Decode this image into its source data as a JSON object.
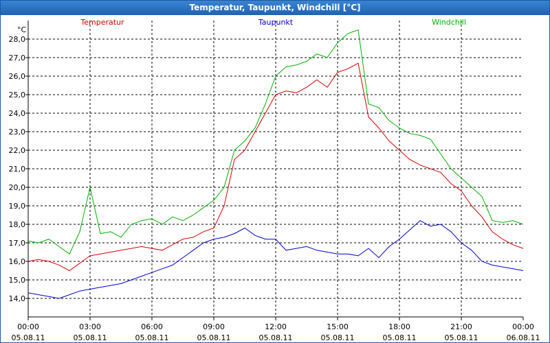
{
  "window": {
    "title": "Temperatur, Taupunkt, Windchill [°C]"
  },
  "chart_data": {
    "type": "line",
    "title": "Temperatur, Taupunkt, Windchill [°C]",
    "ylabel": "°C",
    "xlabel": "",
    "ylim": [
      13.0,
      29.0
    ],
    "xlim": [
      0,
      24
    ],
    "grid": true,
    "y_ticks": [
      "14,0",
      "15,0",
      "16,0",
      "17,0",
      "18,0",
      "19,0",
      "20,0",
      "21,0",
      "22,0",
      "23,0",
      "24,0",
      "25,0",
      "26,0",
      "27,0",
      "28,0"
    ],
    "x_ticks": [
      {
        "time": "00:00",
        "date": "05.08.11"
      },
      {
        "time": "03:00",
        "date": "05.08.11"
      },
      {
        "time": "06:00",
        "date": "05.08.11"
      },
      {
        "time": "09:00",
        "date": "05.08.11"
      },
      {
        "time": "12:00",
        "date": "05.08.11"
      },
      {
        "time": "15:00",
        "date": "05.08.11"
      },
      {
        "time": "18:00",
        "date": "05.08.11"
      },
      {
        "time": "21:00",
        "date": "05.08.11"
      },
      {
        "time": "00:00",
        "date": "06.08.11"
      }
    ],
    "x": [
      0,
      0.5,
      1,
      1.5,
      2,
      2.5,
      3,
      3.5,
      4,
      4.5,
      5,
      5.5,
      6,
      6.5,
      7,
      7.5,
      8,
      8.5,
      9,
      9.5,
      10,
      10.5,
      11,
      11.5,
      12,
      12.5,
      13,
      13.5,
      14,
      14.5,
      15,
      15.5,
      16,
      16.5,
      17,
      17.5,
      18,
      18.5,
      19,
      19.5,
      20,
      20.5,
      21,
      21.5,
      22,
      22.5,
      23,
      23.5,
      24
    ],
    "series": [
      {
        "name": "Temperatur",
        "color": "#d40000",
        "values": [
          16.0,
          16.1,
          16.0,
          15.8,
          15.5,
          15.9,
          16.3,
          16.4,
          16.5,
          16.6,
          16.7,
          16.8,
          16.7,
          16.6,
          16.9,
          17.2,
          17.3,
          17.6,
          17.8,
          19.0,
          21.5,
          22.0,
          23.0,
          24.0,
          25.0,
          25.2,
          25.1,
          25.4,
          25.8,
          25.4,
          26.2,
          26.4,
          26.7,
          23.8,
          23.2,
          22.5,
          22.0,
          21.5,
          21.2,
          21.0,
          20.8,
          20.2,
          19.8,
          19.0,
          18.4,
          17.6,
          17.2,
          16.9,
          16.7
        ]
      },
      {
        "name": "Taupunkt",
        "color": "#0000c8",
        "values": [
          14.3,
          14.2,
          14.1,
          14.0,
          14.2,
          14.4,
          14.5,
          14.6,
          14.7,
          14.8,
          15.0,
          15.2,
          15.4,
          15.6,
          15.8,
          16.2,
          16.6,
          17.0,
          17.2,
          17.3,
          17.5,
          17.8,
          17.4,
          17.2,
          17.2,
          16.6,
          16.7,
          16.8,
          16.6,
          16.5,
          16.4,
          16.4,
          16.3,
          16.7,
          16.2,
          16.8,
          17.2,
          17.7,
          18.2,
          17.9,
          18.0,
          17.6,
          17.0,
          16.6,
          16.0,
          15.8,
          15.7,
          15.6,
          15.5
        ]
      },
      {
        "name": "Windchill",
        "color": "#00b000",
        "values": [
          17.1,
          17.0,
          17.2,
          16.8,
          16.4,
          17.6,
          20.0,
          17.5,
          17.6,
          17.3,
          18.0,
          18.2,
          18.3,
          18.0,
          18.4,
          18.2,
          18.5,
          18.9,
          19.3,
          20.0,
          22.0,
          22.5,
          23.2,
          24.5,
          26.0,
          26.5,
          26.6,
          26.8,
          27.2,
          27.0,
          27.8,
          28.3,
          28.5,
          24.5,
          24.3,
          23.6,
          23.2,
          22.9,
          22.8,
          22.6,
          21.8,
          21.0,
          20.5,
          20.0,
          19.5,
          18.2,
          18.1,
          18.2,
          18.0
        ]
      }
    ]
  }
}
